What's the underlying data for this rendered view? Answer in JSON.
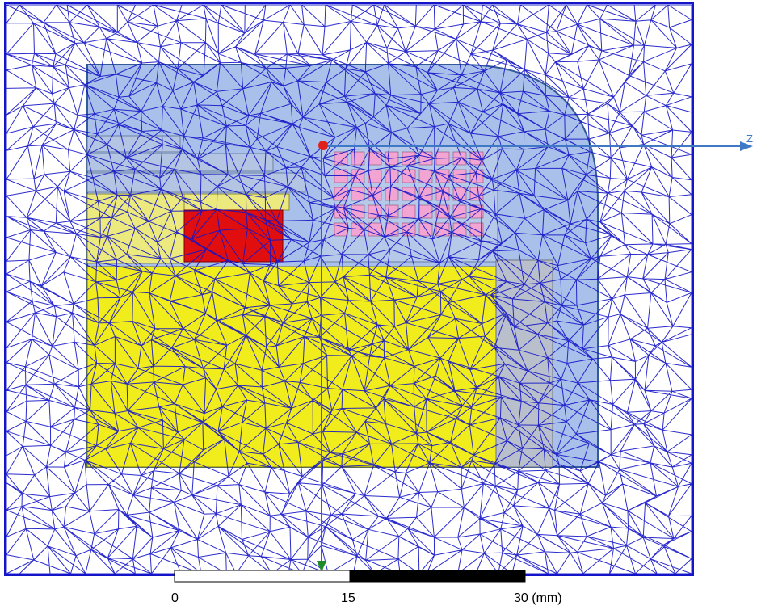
{
  "viewport": {
    "background": "#ffffff",
    "mesh_color": "#1414c8",
    "mesh_pattern": "triangular-tetrahedral-mesh"
  },
  "model": {
    "regions": [
      {
        "name": "air-enclosure",
        "fill": "#ffffff"
      },
      {
        "name": "housing-shell",
        "fill": "#a9c1ea"
      },
      {
        "name": "steel-core",
        "fill": "#f1ed1c"
      },
      {
        "name": "steel-core-upper",
        "fill": "#ecea7e"
      },
      {
        "name": "coil",
        "fill": "#e00e0e"
      },
      {
        "name": "winding-cells",
        "fill": "#f2a4d2"
      },
      {
        "name": "side-plate",
        "fill": "#b9c0cc"
      },
      {
        "name": "inner-plates",
        "fill": "#b3c5e2"
      }
    ]
  },
  "axes": {
    "z_label": "Z",
    "z_color": "#3f78c4",
    "y_color": "#1f8a2a",
    "origin_color": "#e0201a"
  },
  "scale_bar": {
    "labels": [
      "0",
      "15",
      "30 (mm)"
    ],
    "segment_colors": [
      "#ffffff",
      "#000000"
    ],
    "border_color": "#000000"
  }
}
